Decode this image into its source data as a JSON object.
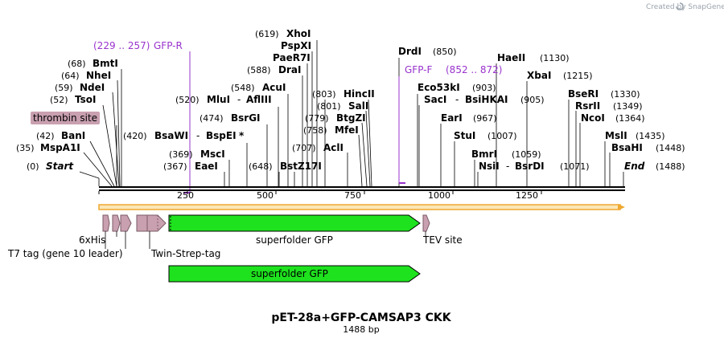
{
  "credit": "Created by SnapGene",
  "title": "pET-28a+GFP-CAMSAP3 CKK",
  "subtitle": "1488 bp",
  "scale_ticks": [
    "250",
    "500",
    "750",
    "1000",
    "1250"
  ],
  "primers": [
    {
      "pos": "(229 .. 257)",
      "name": "GFP-R"
    },
    {
      "pos": "(852 .. 872)",
      "name": "GFP-F"
    }
  ],
  "left_sites": [
    {
      "pos": "(68)",
      "name": "BmtI"
    },
    {
      "pos": "(64)",
      "name": "NheI"
    },
    {
      "pos": "(59)",
      "name": "NdeI"
    },
    {
      "pos": "(52)",
      "name": "TsoI"
    },
    {
      "pos": "(42)",
      "name": "BanI"
    },
    {
      "pos": "(35)",
      "name": "MspA1I"
    },
    {
      "pos": "(0)",
      "name": "Start"
    }
  ],
  "mid_sites": [
    {
      "pos": "(619)",
      "name": "XhoI"
    },
    {
      "pos": "",
      "name": "PspXI"
    },
    {
      "pos": "",
      "name": "PaeR7I"
    },
    {
      "pos": "(588)",
      "name": "DraI"
    },
    {
      "pos": "(548)",
      "name": "AcuI"
    },
    {
      "pos": "(520)",
      "name": "MluI",
      "sep": "-",
      "name2": "AflIII"
    },
    {
      "pos": "(474)",
      "name": "BsrGI"
    },
    {
      "pos": "(420)",
      "name": "BsaWI",
      "sep": "-",
      "name2": "BspEI",
      "mark": "*"
    },
    {
      "pos": "(369)",
      "name": "MscI"
    },
    {
      "pos": "(367)",
      "name": "EaeI"
    },
    {
      "pos": "(648)",
      "name": "BstZ17I"
    },
    {
      "pos": "(803)",
      "name": "HincII"
    },
    {
      "pos": "(801)",
      "name": "SalI"
    },
    {
      "pos": "(779)",
      "name": "BtgZI"
    },
    {
      "pos": "(758)",
      "name": "MfeI"
    },
    {
      "pos": "(707)",
      "name": "AclI"
    }
  ],
  "right_sites": [
    {
      "name": "DrdI",
      "pos": "(850)"
    },
    {
      "name": "HaeII",
      "pos": "(1130)"
    },
    {
      "name": "XbaI",
      "pos": "(1215)"
    },
    {
      "name": "Eco53kI",
      "pos": "(903)"
    },
    {
      "name": "SacI",
      "sep": "-",
      "name2": "BsiHKAI",
      "pos": "(905)"
    },
    {
      "name": "BseRI",
      "pos": "(1330)"
    },
    {
      "name": "RsrII",
      "pos": "(1349)"
    },
    {
      "name": "EarI",
      "pos": "(967)"
    },
    {
      "name": "NcoI",
      "pos": "(1364)"
    },
    {
      "name": "StuI",
      "pos": "(1007)"
    },
    {
      "name": "MslI",
      "pos": "(1435)"
    },
    {
      "name": "BsaHI",
      "pos": "(1448)"
    },
    {
      "name": "BmrI",
      "pos": "(1059)"
    },
    {
      "name": "NsiI",
      "sep": "-",
      "name2": "BsrDI",
      "pos": "(1071)"
    },
    {
      "name": "End",
      "pos": "(1488)"
    }
  ],
  "features": {
    "thrombin": "thrombin site",
    "his": "6xHis",
    "t7": "T7 tag (gene 10 leader)",
    "twin": "Twin-Strep-tag",
    "gfp": "superfolder GFP",
    "tev": "TEV site",
    "gfp2": "superfolder GFP"
  },
  "colors": {
    "gfp": "#1ee21e",
    "tag": "#c9a0b0",
    "primer": "#9933cc",
    "backbone_orange": "#f0a830",
    "backbone_fill": "#fbe7b8"
  }
}
